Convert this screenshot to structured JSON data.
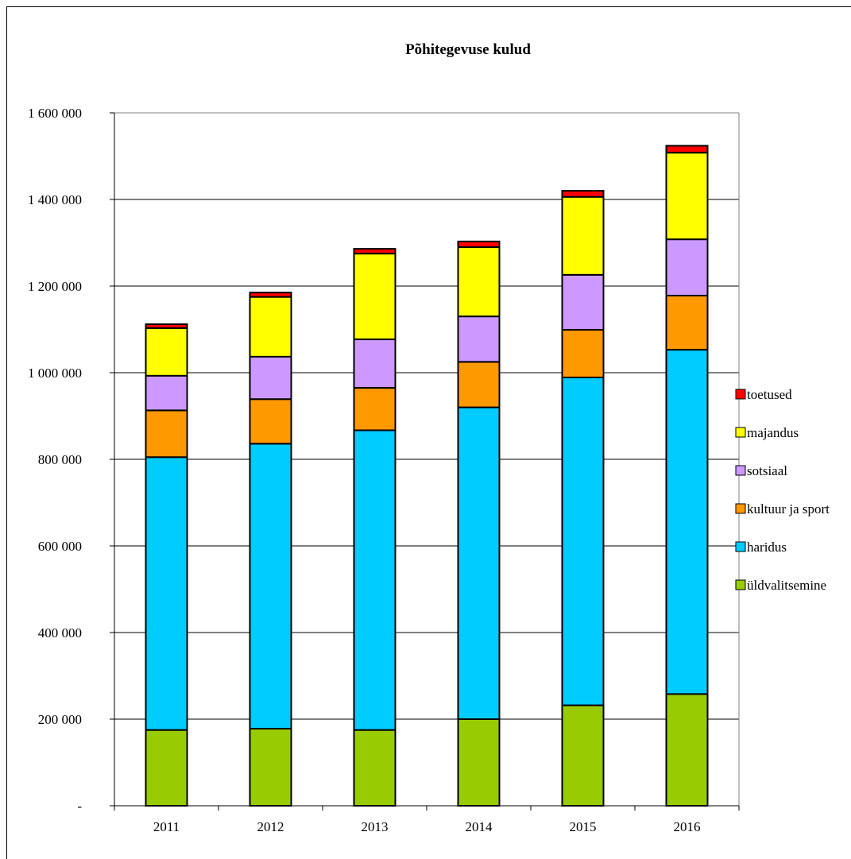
{
  "chart_data": {
    "type": "bar",
    "stacked": true,
    "title": "Põhitegevuse kulud",
    "xlabel": "",
    "ylabel": "",
    "categories": [
      "2011",
      "2012",
      "2013",
      "2014",
      "2015",
      "2016"
    ],
    "ylim": [
      0,
      1600000
    ],
    "yticks": [
      0,
      200000,
      400000,
      600000,
      800000,
      1000000,
      1200000,
      1400000,
      1600000
    ],
    "ytick_labels": [
      "-",
      "200 000",
      "400 000",
      "600 000",
      "800 000",
      "1 000 000",
      "1 200 000",
      "1 400 000",
      "1 600 000"
    ],
    "grid": true,
    "legend_position": "right",
    "series": [
      {
        "name": "üldvalitsemine",
        "color": "#99CC00",
        "values": [
          175000,
          178000,
          175000,
          200000,
          232000,
          258000
        ]
      },
      {
        "name": "haridus",
        "color": "#00CCFF",
        "values": [
          630000,
          658000,
          692000,
          720000,
          757000,
          795000
        ]
      },
      {
        "name": "kultuur ja sport",
        "color": "#FF9900",
        "values": [
          108000,
          103000,
          98000,
          105000,
          110000,
          125000
        ]
      },
      {
        "name": "sotsiaal",
        "color": "#CC99FF",
        "values": [
          80000,
          98000,
          112000,
          105000,
          127000,
          130000
        ]
      },
      {
        "name": "majandus",
        "color": "#FFFF00",
        "values": [
          110000,
          138000,
          198000,
          160000,
          180000,
          200000
        ]
      },
      {
        "name": "toetused",
        "color": "#FF0000",
        "values": [
          9000,
          10000,
          11000,
          13000,
          14000,
          16000
        ]
      }
    ]
  }
}
